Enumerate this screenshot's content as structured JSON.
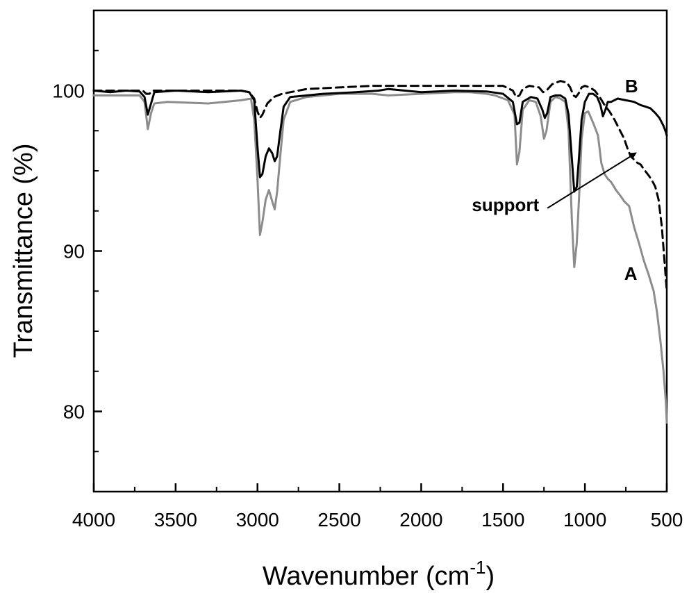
{
  "chart_data": {
    "type": "line",
    "xlabel": "Wavenumber (cm",
    "xlabel_sup": "-1",
    "xlabel_end": ")",
    "ylabel": "Transmittance (%)",
    "xlim": [
      4000,
      500
    ],
    "ylim": [
      75,
      105
    ],
    "x_reversed": true,
    "x_ticks": [
      4000,
      3500,
      3000,
      2500,
      2000,
      1500,
      1000,
      500
    ],
    "x_tick_labels": [
      "4000",
      "3500",
      "3000",
      "2500",
      "2000",
      "1500",
      "1000",
      "500"
    ],
    "y_ticks": [
      80,
      90,
      100
    ],
    "y_tick_labels": [
      "80",
      "90",
      "100"
    ],
    "grid": false,
    "legend": "none",
    "annotations": [
      {
        "text": "A",
        "x": 720,
        "y": 88.2
      },
      {
        "text": "B",
        "x": 715,
        "y": 99.9
      },
      {
        "text": "support",
        "x": 1280,
        "y": 92.5,
        "arrow_to": [
          690,
          96.1
        ]
      }
    ],
    "series": [
      {
        "label": "A",
        "color": "#8c8c8c",
        "style": "solid",
        "points": [
          [
            4000,
            99.7
          ],
          [
            3800,
            99.7
          ],
          [
            3720,
            99.7
          ],
          [
            3690,
            99.3
          ],
          [
            3670,
            97.6
          ],
          [
            3650,
            98.6
          ],
          [
            3630,
            99.2
          ],
          [
            3550,
            99.3
          ],
          [
            3300,
            99.2
          ],
          [
            3100,
            99.4
          ],
          [
            3040,
            99.5
          ],
          [
            3020,
            98.2
          ],
          [
            3000,
            94.5
          ],
          [
            2985,
            91.0
          ],
          [
            2970,
            91.8
          ],
          [
            2950,
            93.2
          ],
          [
            2930,
            93.8
          ],
          [
            2910,
            93.1
          ],
          [
            2895,
            92.6
          ],
          [
            2880,
            93.7
          ],
          [
            2860,
            96.0
          ],
          [
            2840,
            98.2
          ],
          [
            2800,
            99.3
          ],
          [
            2700,
            99.6
          ],
          [
            2500,
            99.8
          ],
          [
            2300,
            99.8
          ],
          [
            2200,
            99.7
          ],
          [
            2000,
            99.8
          ],
          [
            1800,
            99.9
          ],
          [
            1700,
            99.9
          ],
          [
            1600,
            99.8
          ],
          [
            1550,
            99.7
          ],
          [
            1470,
            99.4
          ],
          [
            1430,
            98.5
          ],
          [
            1415,
            95.4
          ],
          [
            1400,
            96.2
          ],
          [
            1380,
            98.8
          ],
          [
            1340,
            99.4
          ],
          [
            1300,
            99.3
          ],
          [
            1270,
            98.4
          ],
          [
            1250,
            97.0
          ],
          [
            1235,
            97.5
          ],
          [
            1210,
            99.3
          ],
          [
            1180,
            99.6
          ],
          [
            1150,
            99.5
          ],
          [
            1120,
            99.3
          ],
          [
            1100,
            97.5
          ],
          [
            1080,
            92.0
          ],
          [
            1065,
            89.0
          ],
          [
            1050,
            90.5
          ],
          [
            1035,
            93.5
          ],
          [
            1020,
            97.0
          ],
          [
            1000,
            98.6
          ],
          [
            980,
            98.7
          ],
          [
            950,
            98.0
          ],
          [
            920,
            97.2
          ],
          [
            900,
            95.5
          ],
          [
            880,
            94.8
          ],
          [
            860,
            94.5
          ],
          [
            840,
            94.3
          ],
          [
            810,
            93.8
          ],
          [
            780,
            93.4
          ],
          [
            760,
            93.1
          ],
          [
            730,
            92.8
          ],
          [
            700,
            91.5
          ],
          [
            670,
            90.5
          ],
          [
            640,
            89.4
          ],
          [
            610,
            88.5
          ],
          [
            580,
            87.5
          ],
          [
            560,
            86.2
          ],
          [
            540,
            84.5
          ],
          [
            520,
            82.5
          ],
          [
            505,
            80.5
          ],
          [
            500,
            79.3
          ]
        ]
      },
      {
        "label": "B",
        "color": "#000000",
        "style": "solid",
        "points": [
          [
            4000,
            100.0
          ],
          [
            3900,
            99.9
          ],
          [
            3800,
            100.0
          ],
          [
            3720,
            99.95
          ],
          [
            3690,
            99.6
          ],
          [
            3670,
            98.5
          ],
          [
            3650,
            99.2
          ],
          [
            3630,
            99.9
          ],
          [
            3500,
            100.0
          ],
          [
            3300,
            99.9
          ],
          [
            3100,
            100.0
          ],
          [
            3050,
            99.9
          ],
          [
            3020,
            99.4
          ],
          [
            3000,
            96.5
          ],
          [
            2985,
            94.6
          ],
          [
            2970,
            94.8
          ],
          [
            2950,
            95.9
          ],
          [
            2930,
            96.4
          ],
          [
            2910,
            96.1
          ],
          [
            2895,
            95.6
          ],
          [
            2880,
            95.9
          ],
          [
            2860,
            97.5
          ],
          [
            2840,
            99.0
          ],
          [
            2800,
            99.6
          ],
          [
            2600,
            99.8
          ],
          [
            2400,
            99.9
          ],
          [
            2260,
            100.0
          ],
          [
            2200,
            100.1
          ],
          [
            2000,
            99.9
          ],
          [
            1800,
            100.0
          ],
          [
            1600,
            99.95
          ],
          [
            1500,
            99.8
          ],
          [
            1440,
            99.3
          ],
          [
            1415,
            97.9
          ],
          [
            1400,
            98.0
          ],
          [
            1380,
            99.3
          ],
          [
            1330,
            99.6
          ],
          [
            1290,
            99.5
          ],
          [
            1260,
            98.8
          ],
          [
            1245,
            98.3
          ],
          [
            1230,
            98.6
          ],
          [
            1210,
            99.6
          ],
          [
            1180,
            99.7
          ],
          [
            1150,
            99.7
          ],
          [
            1120,
            99.5
          ],
          [
            1100,
            98.5
          ],
          [
            1085,
            96.5
          ],
          [
            1065,
            93.7
          ],
          [
            1050,
            94.0
          ],
          [
            1035,
            96.0
          ],
          [
            1020,
            98.2
          ],
          [
            1000,
            99.3
          ],
          [
            975,
            99.8
          ],
          [
            950,
            99.8
          ],
          [
            925,
            99.6
          ],
          [
            905,
            99.1
          ],
          [
            890,
            98.4
          ],
          [
            875,
            98.8
          ],
          [
            860,
            99.3
          ],
          [
            840,
            99.3
          ],
          [
            800,
            99.5
          ],
          [
            750,
            99.4
          ],
          [
            700,
            99.3
          ],
          [
            660,
            99.1
          ],
          [
            630,
            99.0
          ],
          [
            600,
            98.9
          ],
          [
            570,
            98.6
          ],
          [
            545,
            98.3
          ],
          [
            520,
            97.8
          ],
          [
            505,
            97.4
          ],
          [
            500,
            97.2
          ]
        ]
      },
      {
        "label": "support",
        "color": "#000000",
        "style": "dashed",
        "points": [
          [
            4000,
            100.0
          ],
          [
            3800,
            100.0
          ],
          [
            3700,
            100.0
          ],
          [
            3680,
            99.8
          ],
          [
            3660,
            99.8
          ],
          [
            3640,
            100.0
          ],
          [
            3500,
            100.0
          ],
          [
            3100,
            100.0
          ],
          [
            3050,
            99.9
          ],
          [
            3020,
            99.5
          ],
          [
            3000,
            98.7
          ],
          [
            2985,
            98.3
          ],
          [
            2970,
            98.5
          ],
          [
            2940,
            99.2
          ],
          [
            2900,
            99.6
          ],
          [
            2850,
            99.8
          ],
          [
            2700,
            100.1
          ],
          [
            2500,
            100.2
          ],
          [
            2300,
            100.3
          ],
          [
            2200,
            100.3
          ],
          [
            2100,
            100.3
          ],
          [
            2000,
            100.3
          ],
          [
            1800,
            100.3
          ],
          [
            1600,
            100.3
          ],
          [
            1500,
            100.3
          ],
          [
            1440,
            100.0
          ],
          [
            1420,
            99.6
          ],
          [
            1400,
            99.7
          ],
          [
            1380,
            100.1
          ],
          [
            1340,
            100.3
          ],
          [
            1280,
            100.2
          ],
          [
            1255,
            99.9
          ],
          [
            1235,
            100.0
          ],
          [
            1200,
            100.4
          ],
          [
            1150,
            100.6
          ],
          [
            1110,
            100.5
          ],
          [
            1090,
            100.2
          ],
          [
            1070,
            99.7
          ],
          [
            1055,
            99.6
          ],
          [
            1040,
            99.8
          ],
          [
            1020,
            100.2
          ],
          [
            1000,
            100.3
          ],
          [
            970,
            100.2
          ],
          [
            940,
            100.0
          ],
          [
            910,
            99.6
          ],
          [
            880,
            99.1
          ],
          [
            850,
            98.7
          ],
          [
            820,
            98.2
          ],
          [
            790,
            97.6
          ],
          [
            760,
            97.0
          ],
          [
            740,
            96.4
          ],
          [
            720,
            95.9
          ],
          [
            700,
            95.7
          ],
          [
            680,
            95.5
          ],
          [
            660,
            95.4
          ],
          [
            640,
            95.1
          ],
          [
            610,
            94.7
          ],
          [
            590,
            94.4
          ],
          [
            570,
            94.0
          ],
          [
            550,
            93.2
          ],
          [
            530,
            91.5
          ],
          [
            515,
            89.5
          ],
          [
            505,
            88.2
          ],
          [
            500,
            87.5
          ]
        ]
      }
    ]
  }
}
